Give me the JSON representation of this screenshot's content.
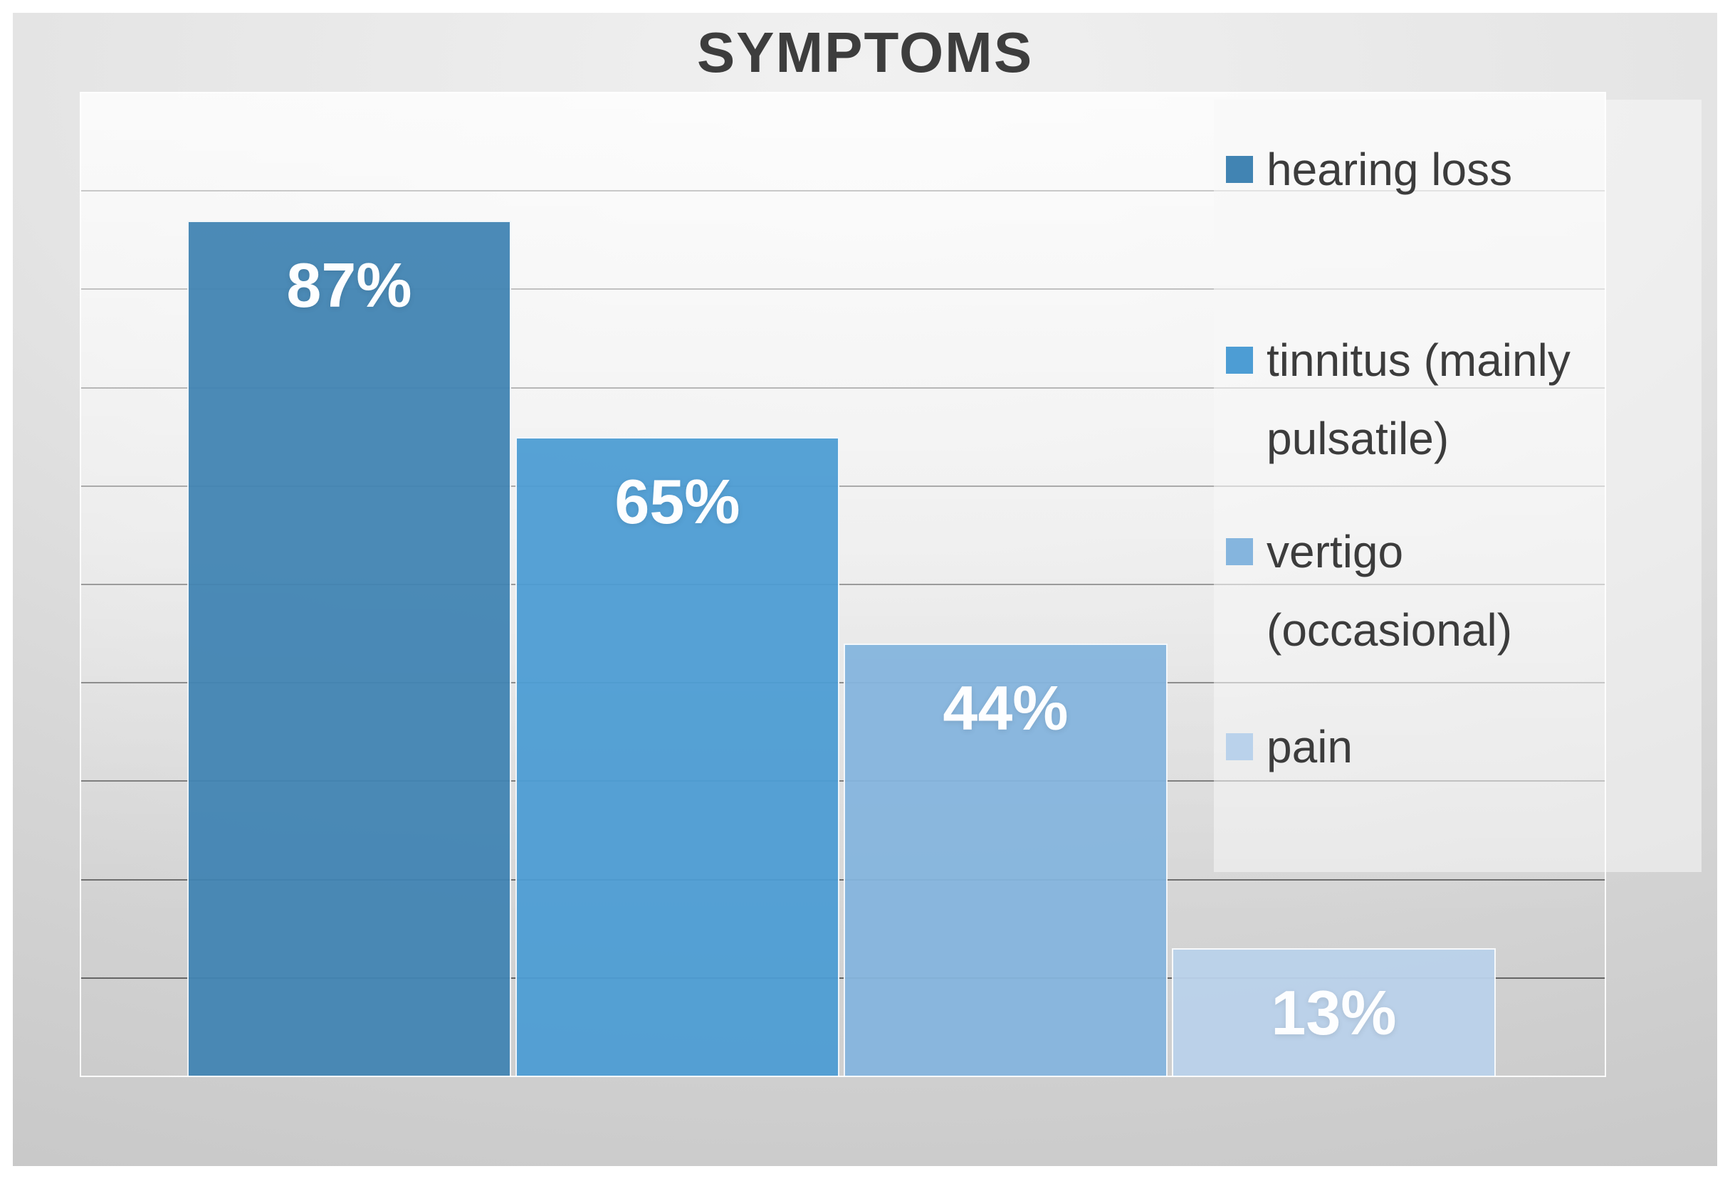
{
  "title": "SYMPTOMS",
  "chart_data": {
    "type": "bar",
    "title": "SYMPTOMS",
    "categories": [
      "hearing loss",
      "tinnitus (mainly pulsatile)",
      "vertigo (occasional)",
      "pain"
    ],
    "values": [
      87,
      65,
      44,
      13
    ],
    "data_labels": [
      "87%",
      "65%",
      "44%",
      "13%"
    ],
    "bar_colors": [
      "#4184b3",
      "#4d9dd4",
      "#85b5de",
      "#bad2eb"
    ],
    "xlabel": "",
    "ylabel": "",
    "ylim": [
      0,
      100
    ],
    "gridline_step": 10,
    "grid": true,
    "legend_position": "right",
    "legend": [
      {
        "lines": [
          "hearing loss"
        ],
        "color": "#4184b3"
      },
      {
        "lines": [
          "tinnitus (mainly",
          "pulsatile)"
        ],
        "color": "#4d9dd4"
      },
      {
        "lines": [
          "vertigo",
          "(occasional)"
        ],
        "color": "#85b5de"
      },
      {
        "lines": [
          "pain"
        ],
        "color": "#bad2eb"
      }
    ]
  }
}
